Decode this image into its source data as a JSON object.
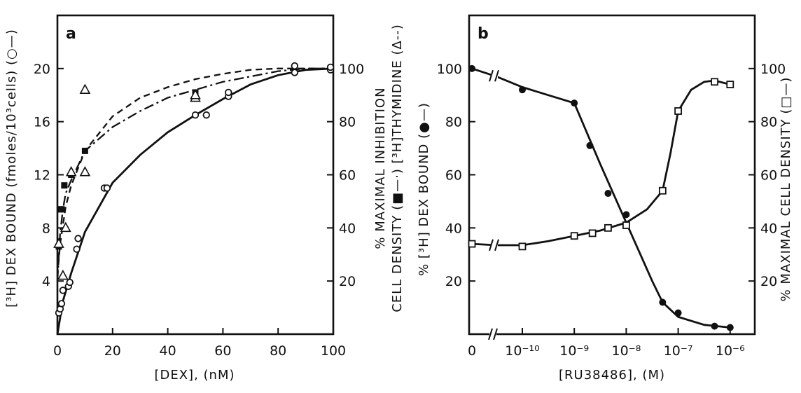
{
  "chart_data": [
    {
      "type": "scatter",
      "panel_label": "a",
      "xlabel": "[DEX], (nM)",
      "ylabel_left": "[³H] DEX BOUND (fmoles/10³cells) (○—)",
      "ylabel_right": [
        "% MAXIMAL INHIBITION",
        "CELL DENSITY (■—·) [³H]THYMIDINE (Δ--)"
      ],
      "xlim": [
        0,
        100
      ],
      "ylim_left": [
        0,
        24
      ],
      "ylim_right": [
        0,
        120
      ],
      "x_ticks": [
        0,
        20,
        40,
        60,
        80,
        100
      ],
      "y_ticks_left": [
        4,
        8,
        12,
        16,
        20
      ],
      "y_ticks_right": [
        20,
        40,
        60,
        80,
        100
      ],
      "series": [
        {
          "name": "[3H] DEX bound",
          "marker": "open-circle",
          "line": "solid",
          "axis": "left",
          "points": [
            [
              0.5,
              1.6
            ],
            [
              1,
              1.9
            ],
            [
              1.5,
              2.3
            ],
            [
              2,
              3.3
            ],
            [
              4,
              3.6
            ],
            [
              4.5,
              3.9
            ],
            [
              7,
              6.4
            ],
            [
              7.5,
              7.2
            ],
            [
              17,
              11
            ],
            [
              18,
              11
            ],
            [
              50,
              16.5
            ],
            [
              54,
              16.5
            ],
            [
              62,
              17.9
            ],
            [
              62,
              18.2
            ],
            [
              86,
              19.7
            ],
            [
              86,
              20.2
            ],
            [
              99,
              19.9
            ],
            [
              99,
              20.1
            ]
          ],
          "curve": [
            [
              0,
              0
            ],
            [
              2,
              2.5
            ],
            [
              5,
              4.6
            ],
            [
              10,
              7.7
            ],
            [
              20,
              11.4
            ],
            [
              30,
              13.5
            ],
            [
              40,
              15.2
            ],
            [
              50,
              16.5
            ],
            [
              60,
              17.7
            ],
            [
              70,
              18.8
            ],
            [
              80,
              19.5
            ],
            [
              90,
              19.9
            ],
            [
              100,
              20
            ]
          ]
        },
        {
          "name": "Cell density",
          "marker": "filled-square",
          "line": "dash-dot",
          "axis": "right",
          "points": [
            [
              0.5,
              33
            ],
            [
              1,
              47
            ],
            [
              1.5,
              47
            ],
            [
              2.5,
              56
            ],
            [
              5,
              60
            ],
            [
              10,
              69
            ],
            [
              50,
              91
            ]
          ],
          "curve": [
            [
              0,
              20
            ],
            [
              1,
              38
            ],
            [
              2,
              47
            ],
            [
              3,
              53
            ],
            [
              5,
              58
            ],
            [
              10,
              69
            ],
            [
              20,
              78
            ],
            [
              30,
              84
            ],
            [
              40,
              89
            ],
            [
              50,
              92
            ],
            [
              60,
              95
            ],
            [
              70,
              97
            ],
            [
              80,
              99
            ],
            [
              90,
              100
            ],
            [
              100,
              100
            ]
          ]
        },
        {
          "name": "[3H]thymidine",
          "marker": "open-triangle",
          "line": "dashed",
          "axis": "right",
          "points": [
            [
              0.5,
              34
            ],
            [
              2,
              22
            ],
            [
              3,
              40
            ],
            [
              5,
              61
            ],
            [
              10,
              61
            ],
            [
              10,
              92
            ],
            [
              50,
              89
            ],
            [
              50,
              90
            ]
          ],
          "curve": [
            [
              0,
              22
            ],
            [
              1,
              34
            ],
            [
              3,
              48
            ],
            [
              5,
              56
            ],
            [
              10,
              69
            ],
            [
              20,
              82
            ],
            [
              30,
              89
            ],
            [
              40,
              93
            ],
            [
              50,
              96
            ],
            [
              60,
              98
            ],
            [
              70,
              99.5
            ],
            [
              80,
              100
            ],
            [
              100,
              100
            ]
          ]
        }
      ]
    },
    {
      "type": "scatter",
      "panel_label": "b",
      "xlabel": "[RU38486], (M)",
      "ylabel_left": "% [³H] DEX BOUND (●—)",
      "ylabel_right": "% MAXIMAL CELL DENSITY (□—)",
      "x_scale": "log with zero break",
      "ylim": [
        0,
        120
      ],
      "x_ticks": [
        "0",
        "10⁻¹⁰",
        "10⁻⁹",
        "10⁻⁸",
        "10⁻⁷",
        "10⁻⁶"
      ],
      "y_ticks_left": [
        20,
        40,
        60,
        80,
        100
      ],
      "y_ticks_right": [
        20,
        40,
        60,
        80,
        100
      ],
      "series": [
        {
          "name": "% [3H] DEX bound",
          "marker": "filled-circle",
          "line": "solid",
          "points": [
            [
              "0",
              100
            ],
            [
              -10,
              92
            ],
            [
              -9,
              87
            ],
            [
              -8.7,
              71
            ],
            [
              -8.35,
              53
            ],
            [
              -8,
              45
            ],
            [
              -7.3,
              12
            ],
            [
              -7,
              8
            ],
            [
              -6.3,
              3
            ],
            [
              -6,
              2.5
            ]
          ],
          "curve": [
            [
              "0",
              100
            ],
            [
              -10.5,
              97
            ],
            [
              -10,
              93
            ],
            [
              -9.5,
              90
            ],
            [
              -9,
              87
            ],
            [
              -8.5,
              64
            ],
            [
              -8,
              42
            ],
            [
              -7.5,
              20
            ],
            [
              -7.3,
              12
            ],
            [
              -7,
              6.5
            ],
            [
              -6.5,
              3.5
            ],
            [
              -6,
              2.5
            ]
          ]
        },
        {
          "name": "% maximal cell density",
          "marker": "open-square",
          "line": "solid",
          "points": [
            [
              "0",
              34
            ],
            [
              -10,
              33
            ],
            [
              -9,
              37
            ],
            [
              -8.65,
              38
            ],
            [
              -8.35,
              40
            ],
            [
              -8,
              41
            ],
            [
              -7.3,
              54
            ],
            [
              -7,
              84
            ],
            [
              -6.3,
              95
            ],
            [
              -6,
              94
            ]
          ],
          "curve": [
            [
              "0",
              34
            ],
            [
              -10.5,
              33.5
            ],
            [
              -10,
              33.5
            ],
            [
              -9.5,
              35
            ],
            [
              -9,
              37
            ],
            [
              -8.5,
              39
            ],
            [
              -8,
              42
            ],
            [
              -7.6,
              47
            ],
            [
              -7.3,
              54
            ],
            [
              -7.15,
              68
            ],
            [
              -7,
              84
            ],
            [
              -6.75,
              92
            ],
            [
              -6.5,
              95
            ],
            [
              -6.3,
              95.5
            ],
            [
              -6,
              94
            ]
          ]
        }
      ]
    }
  ]
}
